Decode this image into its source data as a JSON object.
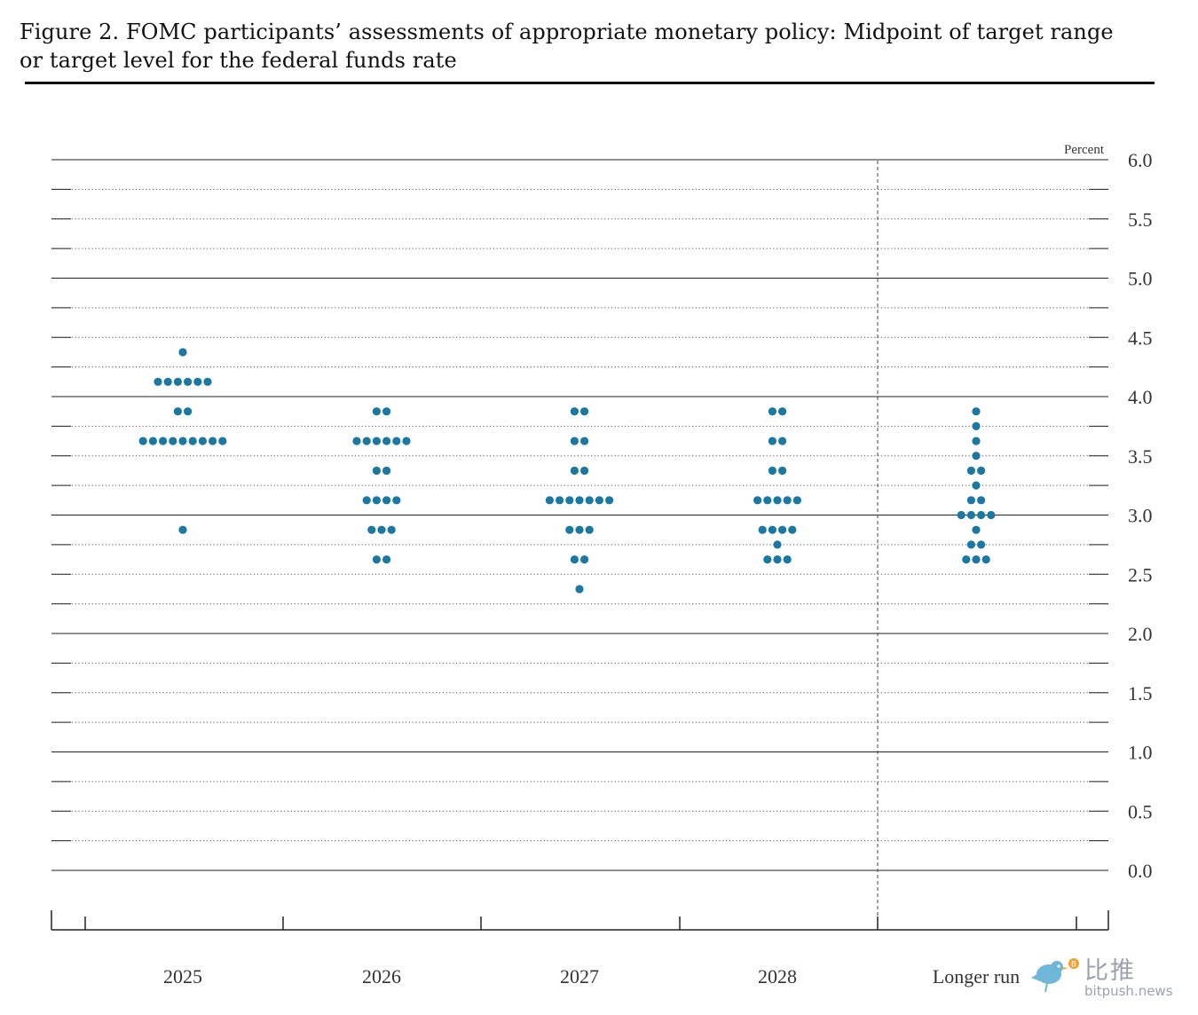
{
  "title": "Figure 2. FOMC participants’ assessments of appropriate monetary policy: Midpoint of target range or target level for the federal funds rate",
  "chart_data": {
    "type": "scatter",
    "title": "Figure 2. FOMC participants’ assessments of appropriate monetary policy: Midpoint of target range or target level for the federal funds rate",
    "ylabel": "Percent",
    "ylim": [
      0.0,
      6.0
    ],
    "y_ticks": [
      "6.0",
      "5.5",
      "5.0",
      "4.5",
      "4.0",
      "3.5",
      "3.0",
      "2.5",
      "2.0",
      "1.5",
      "1.0",
      "0.5",
      "0.0"
    ],
    "categories": [
      "2025",
      "2026",
      "2027",
      "2028",
      "Longer run"
    ],
    "dot_color": "#1a78a3",
    "series": [
      {
        "category": "2025",
        "points": [
          {
            "y": 4.375,
            "count": 1
          },
          {
            "y": 4.125,
            "count": 6
          },
          {
            "y": 3.875,
            "count": 2
          },
          {
            "y": 3.625,
            "count": 9
          },
          {
            "y": 2.875,
            "count": 1
          }
        ]
      },
      {
        "category": "2026",
        "points": [
          {
            "y": 3.875,
            "count": 2
          },
          {
            "y": 3.625,
            "count": 6
          },
          {
            "y": 3.375,
            "count": 2
          },
          {
            "y": 3.125,
            "count": 4
          },
          {
            "y": 2.875,
            "count": 3
          },
          {
            "y": 2.625,
            "count": 2
          }
        ]
      },
      {
        "category": "2027",
        "points": [
          {
            "y": 3.875,
            "count": 2
          },
          {
            "y": 3.625,
            "count": 2
          },
          {
            "y": 3.375,
            "count": 2
          },
          {
            "y": 3.125,
            "count": 7
          },
          {
            "y": 2.875,
            "count": 3
          },
          {
            "y": 2.625,
            "count": 2
          },
          {
            "y": 2.375,
            "count": 1
          }
        ]
      },
      {
        "category": "2028",
        "points": [
          {
            "y": 3.875,
            "count": 2
          },
          {
            "y": 3.625,
            "count": 2
          },
          {
            "y": 3.375,
            "count": 2
          },
          {
            "y": 3.125,
            "count": 5
          },
          {
            "y": 2.875,
            "count": 4
          },
          {
            "y": 2.75,
            "count": 1
          },
          {
            "y": 2.625,
            "count": 3
          }
        ]
      },
      {
        "category": "Longer run",
        "points": [
          {
            "y": 3.875,
            "count": 1
          },
          {
            "y": 3.75,
            "count": 1
          },
          {
            "y": 3.625,
            "count": 1
          },
          {
            "y": 3.5,
            "count": 1
          },
          {
            "y": 3.375,
            "count": 2
          },
          {
            "y": 3.25,
            "count": 1
          },
          {
            "y": 3.125,
            "count": 2
          },
          {
            "y": 3.0,
            "count": 4
          },
          {
            "y": 2.875,
            "count": 1
          },
          {
            "y": 2.75,
            "count": 2
          },
          {
            "y": 2.625,
            "count": 3
          }
        ]
      }
    ],
    "grid": true
  },
  "watermark": {
    "cn": "比推",
    "en": "bitpush.news"
  }
}
